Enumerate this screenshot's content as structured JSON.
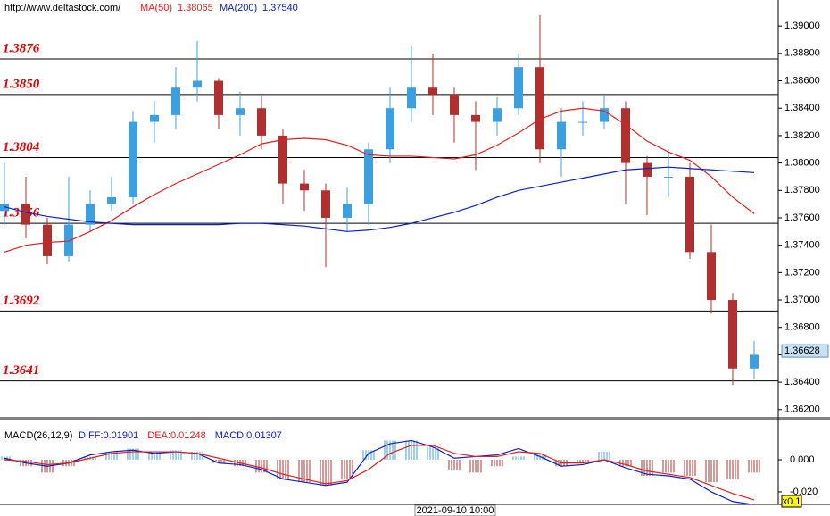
{
  "chart_data": [
    {
      "type": "candlestick",
      "source": "http://www.deltastock.com/",
      "cursor_label": "2021-09-10 10:00",
      "up_color": "#3ca0e0",
      "down_color": "#b03030",
      "open": [
        1.3765,
        1.377,
        1.3755,
        1.3732,
        1.3755,
        1.377,
        1.3775,
        1.383,
        1.3835,
        1.3855,
        1.386,
        1.3835,
        1.384,
        1.382,
        1.3785,
        1.378,
        1.376,
        1.377,
        1.381,
        1.384,
        1.3855,
        1.385,
        1.3835,
        1.383,
        1.384,
        1.387,
        1.381,
        1.383,
        1.383,
        1.384,
        1.38,
        1.379,
        1.379,
        1.3735,
        1.37,
        1.365
      ],
      "high": [
        1.38,
        1.379,
        1.376,
        1.379,
        1.378,
        1.379,
        1.3838,
        1.3845,
        1.387,
        1.3889,
        1.3862,
        1.3852,
        1.385,
        1.3825,
        1.3795,
        1.3785,
        1.3782,
        1.3815,
        1.3855,
        1.3885,
        1.388,
        1.3855,
        1.3845,
        1.3848,
        1.388,
        1.3908,
        1.384,
        1.3845,
        1.385,
        1.3845,
        1.3805,
        1.381,
        1.38,
        1.3755,
        1.3705,
        1.367
      ],
      "low": [
        1.3755,
        1.3745,
        1.3726,
        1.3728,
        1.375,
        1.3765,
        1.377,
        1.3815,
        1.3825,
        1.3845,
        1.3825,
        1.382,
        1.381,
        1.377,
        1.3765,
        1.3724,
        1.375,
        1.3755,
        1.38,
        1.383,
        1.3835,
        1.3815,
        1.3795,
        1.382,
        1.3835,
        1.38,
        1.379,
        1.382,
        1.3825,
        1.377,
        1.3762,
        1.3775,
        1.373,
        1.369,
        1.3638,
        1.3642
      ],
      "close": [
        1.377,
        1.3755,
        1.3732,
        1.3755,
        1.377,
        1.3775,
        1.383,
        1.3835,
        1.3855,
        1.386,
        1.3835,
        1.384,
        1.382,
        1.3785,
        1.378,
        1.376,
        1.377,
        1.381,
        1.384,
        1.3855,
        1.385,
        1.3835,
        1.383,
        1.384,
        1.387,
        1.381,
        1.383,
        1.383,
        1.384,
        1.38,
        1.379,
        1.379,
        1.3735,
        1.37,
        1.365,
        1.366
      ],
      "series": [
        {
          "name": "MA(50)",
          "last_label": "1.38065",
          "color": "#e02020",
          "values": [
            1.3735,
            1.374,
            1.3742,
            1.3743,
            1.375,
            1.3758,
            1.3768,
            1.3777,
            1.3785,
            1.3792,
            1.3799,
            1.3806,
            1.3814,
            1.3817,
            1.3818,
            1.3817,
            1.3813,
            1.3806,
            1.3805,
            1.3805,
            1.3804,
            1.3803,
            1.3806,
            1.3813,
            1.3822,
            1.3832,
            1.3838,
            1.384,
            1.3838,
            1.3828,
            1.3816,
            1.3808,
            1.3802,
            1.379,
            1.3775,
            1.3763
          ]
        },
        {
          "name": "MA(200)",
          "last_label": "1.37540",
          "color": "#1020c0",
          "values": [
            1.3768,
            1.3764,
            1.3761,
            1.3759,
            1.3757,
            1.3756,
            1.3755,
            1.3755,
            1.3755,
            1.3755,
            1.3755,
            1.3756,
            1.3756,
            1.3755,
            1.3754,
            1.3752,
            1.375,
            1.3751,
            1.3753,
            1.3756,
            1.376,
            1.3764,
            1.3769,
            1.3775,
            1.378,
            1.3783,
            1.3786,
            1.3789,
            1.3792,
            1.3795,
            1.3796,
            1.3797,
            1.3796,
            1.3795,
            1.3794,
            1.3793
          ]
        }
      ],
      "levels": [
        {
          "value": 1.3876,
          "label": "1.3876"
        },
        {
          "value": 1.385,
          "label": "1.3850"
        },
        {
          "value": 1.3804,
          "label": "1.3804"
        },
        {
          "value": 1.3756,
          "label": "1.3756"
        },
        {
          "value": 1.3692,
          "label": "1.3692"
        },
        {
          "value": 1.3641,
          "label": "1.3641"
        }
      ],
      "last_price": {
        "value": 1.36628,
        "label": "1.36628"
      },
      "ylim": [
        1.3614,
        1.3919
      ],
      "yticks": [
        {
          "value": 1.362,
          "label": "1.36200"
        },
        {
          "value": 1.364,
          "label": "1.36400"
        },
        {
          "value": 1.366,
          "label": "1.36600"
        },
        {
          "value": 1.368,
          "label": "1.36800"
        },
        {
          "value": 1.37,
          "label": "1.37000"
        },
        {
          "value": 1.372,
          "label": "1.37200"
        },
        {
          "value": 1.374,
          "label": "1.37400"
        },
        {
          "value": 1.376,
          "label": "1.37600"
        },
        {
          "value": 1.378,
          "label": "1.37800"
        },
        {
          "value": 1.38,
          "label": "1.38000"
        },
        {
          "value": 1.382,
          "label": "1.38200"
        },
        {
          "value": 1.384,
          "label": "1.38400"
        },
        {
          "value": 1.386,
          "label": "1.38600"
        },
        {
          "value": 1.388,
          "label": "1.38800"
        },
        {
          "value": 1.39,
          "label": "1.39000"
        }
      ]
    },
    {
      "type": "macd",
      "title": "MACD(26,12,9)",
      "stats": [
        {
          "label": "DIFF:0.01901",
          "color": "#1020c0"
        },
        {
          "label": "DEA:0.01248",
          "color": "#e02020"
        },
        {
          "label": "MACD:0.01307",
          "color": "#1020c0"
        }
      ],
      "scale_label": "x0.1",
      "histogram": {
        "up_color": "#3ca0e0",
        "down_color": "#b03030",
        "values": [
          0.002,
          -0.004,
          -0.008,
          -0.004,
          0.002,
          0.005,
          0.007,
          0.005,
          0.006,
          0.005,
          -0.002,
          -0.004,
          -0.008,
          -0.012,
          -0.014,
          -0.016,
          -0.012,
          0.006,
          0.012,
          0.012,
          0.008,
          -0.006,
          -0.008,
          -0.004,
          0.002,
          0.004,
          -0.004,
          -0.002,
          0.005,
          -0.004,
          -0.01,
          -0.008,
          -0.01,
          -0.014,
          -0.012,
          -0.008
        ]
      },
      "series": [
        {
          "name": "DIFF",
          "color": "#1020c0",
          "values": [
            0.001,
            -0.002,
            -0.004,
            -0.002,
            0.003,
            0.005,
            0.006,
            0.004,
            0.005,
            0.004,
            -0.002,
            -0.003,
            -0.006,
            -0.012,
            -0.014,
            -0.016,
            -0.014,
            0.004,
            0.01,
            0.012,
            0.008,
            0.001,
            0.002,
            0.003,
            0.007,
            0.002,
            -0.004,
            -0.003,
            0.0,
            -0.005,
            -0.009,
            -0.01,
            -0.012,
            -0.02,
            -0.026,
            -0.028
          ]
        },
        {
          "name": "DEA",
          "color": "#e02020",
          "values": [
            0.0,
            -0.001,
            -0.003,
            -0.002,
            0.001,
            0.004,
            0.005,
            0.005,
            0.005,
            0.004,
            0.001,
            -0.002,
            -0.005,
            -0.009,
            -0.012,
            -0.015,
            -0.013,
            -0.006,
            0.004,
            0.009,
            0.009,
            0.004,
            0.002,
            0.002,
            0.005,
            0.004,
            -0.002,
            -0.002,
            0.0,
            -0.003,
            -0.007,
            -0.009,
            -0.011,
            -0.016,
            -0.021,
            -0.025
          ]
        }
      ],
      "ylim": [
        -0.0278,
        0.0206
      ],
      "yticks": [
        {
          "value": 0,
          "label": "0.000"
        },
        {
          "value": -0.02,
          "label": "-0.020"
        }
      ]
    }
  ]
}
